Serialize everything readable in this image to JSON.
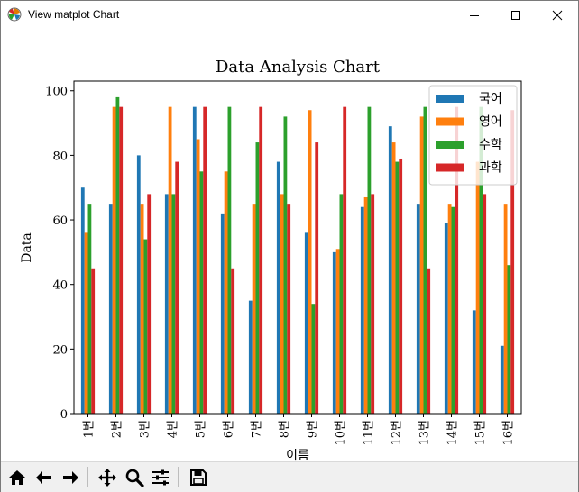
{
  "window": {
    "title": "View matplot Chart",
    "controls": [
      "minimize",
      "maximize",
      "close"
    ]
  },
  "toolbar": {
    "buttons": [
      {
        "name": "home",
        "icon": "home-icon"
      },
      {
        "name": "back",
        "icon": "arrow-left-icon"
      },
      {
        "name": "forward",
        "icon": "arrow-right-icon"
      },
      {
        "name": "pan",
        "icon": "move-icon"
      },
      {
        "name": "zoom",
        "icon": "magnifier-icon"
      },
      {
        "name": "subplots",
        "icon": "sliders-icon"
      },
      {
        "name": "save",
        "icon": "floppy-disk-icon"
      }
    ]
  },
  "chart_data": {
    "type": "bar",
    "title": "Data Analysis Chart",
    "xlabel": "이름",
    "ylabel": "Data",
    "ylim": [
      0,
      103
    ],
    "yticks": [
      0,
      20,
      40,
      60,
      80,
      100
    ],
    "grid": false,
    "legend_position": "top-right",
    "categories": [
      "1번",
      "2번",
      "3번",
      "4번",
      "5번",
      "6번",
      "7번",
      "8번",
      "9번",
      "10번",
      "11번",
      "12번",
      "13번",
      "14번",
      "15번",
      "16번"
    ],
    "series": [
      {
        "name": "국어",
        "color": "#1f77b4",
        "values": [
          70,
          65,
          80,
          68,
          95,
          62,
          35,
          78,
          56,
          50,
          64,
          89,
          65,
          59,
          32,
          21
        ]
      },
      {
        "name": "영어",
        "color": "#ff7f0e",
        "values": [
          56,
          95,
          65,
          95,
          85,
          75,
          65,
          68,
          94,
          51,
          67,
          84,
          92,
          65,
          78,
          65
        ]
      },
      {
        "name": "수학",
        "color": "#2ca02c",
        "values": [
          65,
          98,
          54,
          68,
          75,
          95,
          84,
          92,
          34,
          68,
          95,
          78,
          95,
          64,
          95,
          46
        ]
      },
      {
        "name": "과학",
        "color": "#d62728",
        "values": [
          45,
          95,
          68,
          78,
          95,
          45,
          95,
          65,
          84,
          95,
          68,
          79,
          45,
          95,
          68,
          94
        ]
      }
    ]
  }
}
